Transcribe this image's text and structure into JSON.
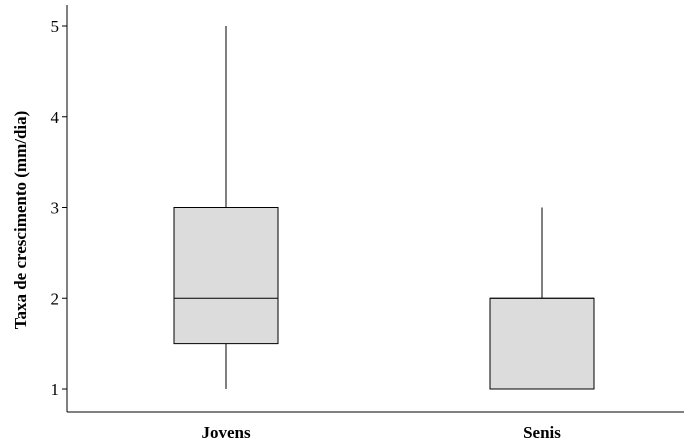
{
  "chart_data": {
    "type": "boxplot",
    "title": "",
    "xlabel": "",
    "ylabel": "Taxa de crescimento (mm/dia)",
    "ylim": [
      0.85,
      5.15
    ],
    "yticks": [
      1,
      2,
      3,
      4,
      5
    ],
    "ytick_labels": [
      "1",
      "2",
      "3",
      "4",
      "5"
    ],
    "grid": false,
    "categories": [
      "Jovens",
      "Senis"
    ],
    "boxes": [
      {
        "category": "Jovens",
        "min": 1,
        "q1": 1.5,
        "median": 2,
        "q3": 3,
        "max": 5
      },
      {
        "category": "Senis",
        "min": 1,
        "q1": 1,
        "median": 2,
        "q3": 2,
        "max": 3
      }
    ],
    "box_color": "#dcdcdc",
    "line_color": "#000000"
  }
}
